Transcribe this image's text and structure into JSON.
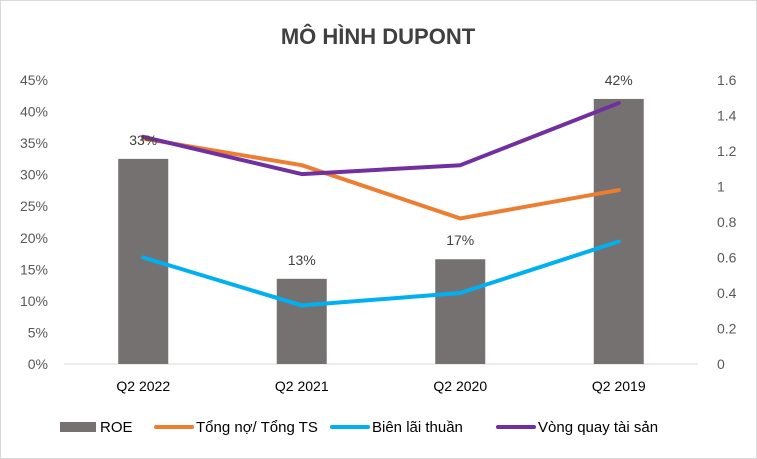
{
  "chart_data": {
    "type": "bar",
    "title": "MÔ HÌNH DUPONT",
    "categories": [
      "Q2 2022",
      "Q2 2021",
      "Q2 2020",
      "Q2 2019"
    ],
    "y_left": {
      "min": 0,
      "max": 0.45,
      "ticks": [
        "0%",
        "5%",
        "10%",
        "15%",
        "20%",
        "25%",
        "30%",
        "35%",
        "40%",
        "45%"
      ]
    },
    "y_right": {
      "min": 0,
      "max": 1.6,
      "ticks": [
        "0",
        "0.2",
        "0.4",
        "0.6",
        "0.8",
        "1",
        "1.2",
        "1.4",
        "1.6"
      ]
    },
    "series": [
      {
        "name": "ROE",
        "type": "bar",
        "axis": "left",
        "color": "#767171",
        "values": [
          0.325,
          0.135,
          0.166,
          0.42
        ],
        "labels": [
          "33%",
          "13%",
          "17%",
          "42%"
        ]
      },
      {
        "name": "Tổng nợ/ Tổng TS",
        "type": "line",
        "axis": "right",
        "color": "#ED7D31",
        "values": [
          1.27,
          1.12,
          0.82,
          0.98
        ]
      },
      {
        "name": "Biên lãi thuần",
        "type": "line",
        "axis": "right",
        "color": "#00B0F0",
        "values": [
          0.6,
          0.33,
          0.4,
          0.69
        ]
      },
      {
        "name": "Vòng quay tài sản",
        "type": "line",
        "axis": "right",
        "color": "#7030A0",
        "values": [
          1.28,
          1.07,
          1.12,
          1.47
        ]
      }
    ],
    "legend_position": "bottom",
    "grid": false
  }
}
